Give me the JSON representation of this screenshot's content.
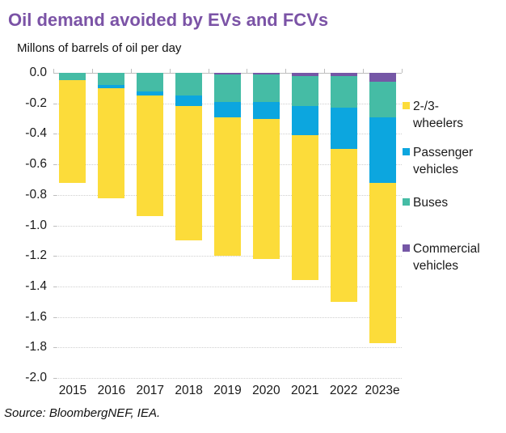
{
  "title": "Oil demand avoided by EVs and FCVs",
  "subtitle": "Millons of barrels of oil per day",
  "source": "Source: BloombergNEF, IEA.",
  "colors": {
    "title": "#7B53A6",
    "wheelers": "#FCDC3A",
    "passenger": "#0CA6DF",
    "buses": "#45BCA5",
    "commercial": "#7557A6",
    "gridline": "#CFCFCF",
    "axis": "#BDBDBD",
    "text": "#1A1A1A"
  },
  "chart_data": {
    "type": "bar",
    "stacked": true,
    "direction": "negative-down",
    "title": "Oil demand avoided by EVs and FCVs",
    "ylabel": "Millons of barrels of oil per day",
    "categories": [
      "2015",
      "2016",
      "2017",
      "2018",
      "2019",
      "2020",
      "2021",
      "2022",
      "2023e"
    ],
    "stack_order_top_to_bottom": [
      "Commercial vehicles",
      "Buses",
      "Passenger vehicles",
      "2-/3-wheelers"
    ],
    "series": [
      {
        "key": "commercial",
        "name": "Commercial vehicles",
        "values": [
          0,
          0,
          0,
          0,
          0.01,
          0.01,
          0.02,
          0.02,
          0.06
        ]
      },
      {
        "key": "buses",
        "name": "Buses",
        "values": [
          0.05,
          0.08,
          0.12,
          0.15,
          0.18,
          0.18,
          0.2,
          0.21,
          0.23
        ]
      },
      {
        "key": "passenger",
        "name": "Passenger vehicles",
        "values": [
          0,
          0.02,
          0.03,
          0.07,
          0.1,
          0.11,
          0.19,
          0.27,
          0.43
        ]
      },
      {
        "key": "wheelers",
        "name": "2-/3-wheelers",
        "values": [
          0.67,
          0.72,
          0.79,
          0.88,
          0.91,
          0.92,
          0.95,
          1.0,
          1.05
        ]
      }
    ],
    "totals": [
      0.72,
      0.82,
      0.94,
      1.1,
      1.2,
      1.22,
      1.36,
      1.5,
      1.77
    ],
    "ylim": [
      -2.0,
      0.0
    ],
    "ytick_step": 0.2,
    "ytick_labels": [
      "0.0",
      "-0.2",
      "-0.4",
      "-0.6",
      "-0.8",
      "-1.0",
      "-1.2",
      "-1.4",
      "-1.6",
      "-1.8",
      "-2.0"
    ],
    "grid": "dotted-horizontal",
    "legend_position": "right"
  },
  "legend": {
    "items": [
      {
        "key": "wheelers",
        "label": "2-/3-\nwheelers"
      },
      {
        "key": "passenger",
        "label": "Passenger\nvehicles"
      },
      {
        "key": "buses",
        "label": "Buses"
      },
      {
        "key": "commercial",
        "label": "Commercial\nvehicles"
      }
    ]
  }
}
